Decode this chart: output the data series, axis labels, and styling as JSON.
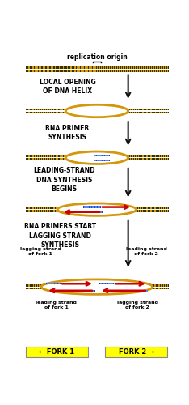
{
  "bg_color": "#ffffff",
  "dna_orange": "#d4960a",
  "dna_dark": "#333300",
  "bubble_edge": "#d4960a",
  "rna_blue": "#5588ff",
  "rna_dark_blue": "#2244bb",
  "new_dna_red": "#cc0000",
  "arrow_color": "#111111",
  "fork_yellow": "#ffff00",
  "text_black": "#000000",
  "steps": [
    {
      "label": "replication origin",
      "bold": false,
      "size": 5.5
    },
    {
      "label": "LOCAL OPENING\nOF DNA HELIX",
      "bold": true,
      "size": 5.5
    },
    {
      "label": "RNA PRIMER\nSYNTHESIS",
      "bold": true,
      "size": 5.5
    },
    {
      "label": "LEADING-STRAND\nDNA SYNTHESIS\nBEGINS",
      "bold": true,
      "size": 5.5
    },
    {
      "label": "RNA PRIMERS START\nLAGGING STRAND\nSYNTHESIS",
      "bold": true,
      "size": 5.5
    }
  ],
  "fork1_label": "← FORK 1",
  "fork2_label": "FORK 2 →",
  "lagging_fork1": "lagging strand\nof fork 1",
  "leading_fork2": "leading strand\nof fork 2",
  "leading_fork1": "leading strand\nof fork 1",
  "lagging_fork2": "lagging strand\nof fork 2"
}
